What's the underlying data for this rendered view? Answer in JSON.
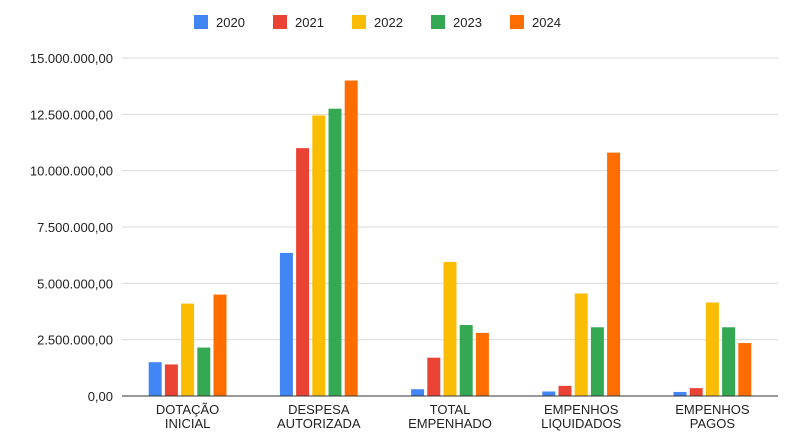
{
  "chart_data": {
    "type": "bar",
    "title": "",
    "xlabel": "",
    "ylabel": "",
    "categories": [
      [
        "DOTAÇÃO",
        "INICIAL"
      ],
      [
        "DESPESA",
        "AUTORIZADA"
      ],
      [
        "TOTAL",
        "EMPENHADO"
      ],
      [
        "EMPENHOS",
        "LIQUIDADOS"
      ],
      [
        "EMPENHOS",
        "PAGOS"
      ]
    ],
    "yticks": [
      {
        "value": 0,
        "label": "0,00"
      },
      {
        "value": 2500000,
        "label": "2.500.000,00"
      },
      {
        "value": 5000000,
        "label": "5.000.000,00"
      },
      {
        "value": 7500000,
        "label": "7.500.000,00"
      },
      {
        "value": 10000000,
        "label": "10.000.000,00"
      },
      {
        "value": 12500000,
        "label": "12.500.000,00"
      },
      {
        "value": 15000000,
        "label": "15.000.000,00"
      }
    ],
    "ylim": [
      0,
      15000000
    ],
    "grid": true,
    "legend_position": "top",
    "series": [
      {
        "name": "2020",
        "color": "#4285F4",
        "values": [
          1500000,
          6350000,
          300000,
          200000,
          180000
        ]
      },
      {
        "name": "2021",
        "color": "#EA4335",
        "values": [
          1400000,
          11000000,
          1700000,
          450000,
          350000
        ]
      },
      {
        "name": "2022",
        "color": "#FBBC04",
        "values": [
          4100000,
          12450000,
          5950000,
          4550000,
          4150000
        ]
      },
      {
        "name": "2023",
        "color": "#34A853",
        "values": [
          2150000,
          12750000,
          3150000,
          3050000,
          3050000
        ]
      },
      {
        "name": "2024",
        "color": "#FF6D01",
        "values": [
          4500000,
          14000000,
          2800000,
          10800000,
          2350000
        ]
      }
    ]
  }
}
